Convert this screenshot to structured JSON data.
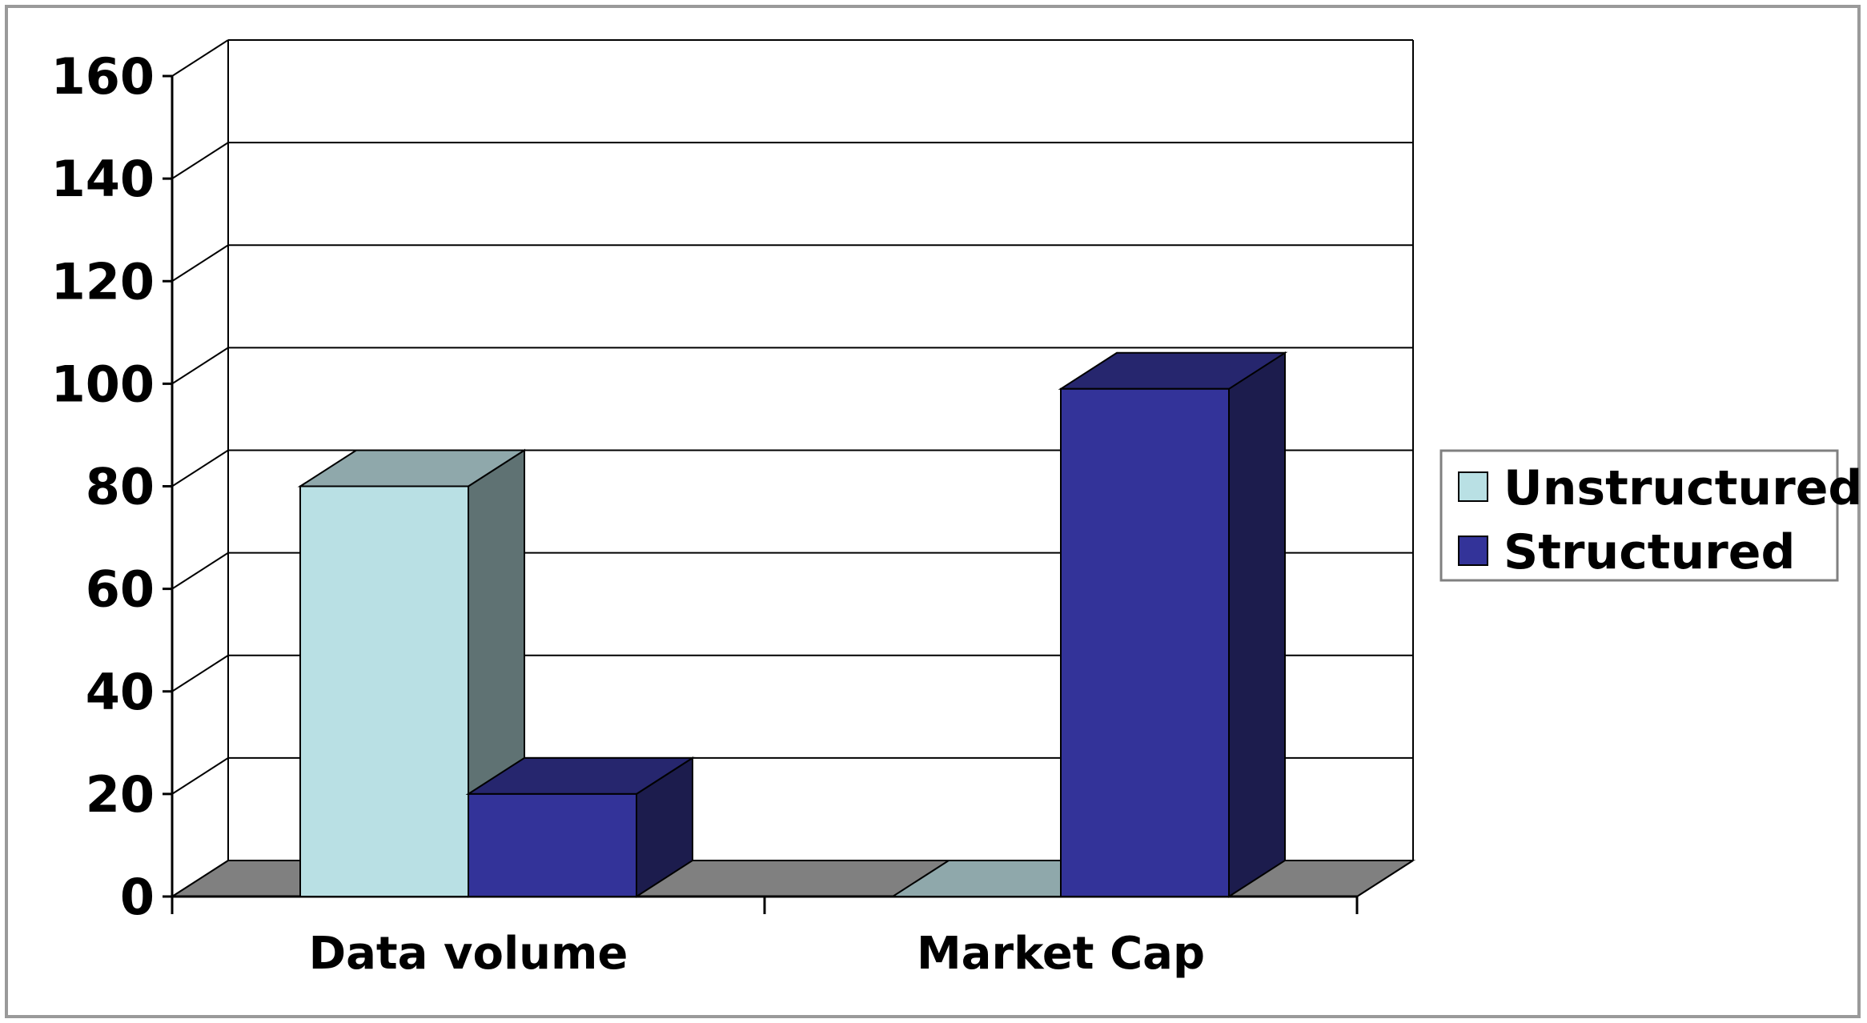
{
  "chart_data": {
    "type": "bar",
    "style": "3d-clustered-column",
    "categories": [
      "Data volume",
      "Market Cap"
    ],
    "series": [
      {
        "name": "Unstructured",
        "values": [
          80,
          0
        ],
        "color": "#b9e0e4",
        "side_color": "#5f7273",
        "top_color": "#8fa8ab"
      },
      {
        "name": "Structured",
        "values": [
          20,
          99
        ],
        "color": "#333399",
        "side_color": "#1c1c4d",
        "top_color": "#26266e"
      }
    ],
    "title": "",
    "xlabel": "",
    "ylabel": "",
    "ylim": [
      0,
      160
    ],
    "yticks": [
      "0",
      "20",
      "40",
      "60",
      "80",
      "100",
      "120",
      "140",
      "160"
    ],
    "grid": true,
    "legend": "right",
    "floor_color": "#808080",
    "gridline_color": "#000000"
  }
}
